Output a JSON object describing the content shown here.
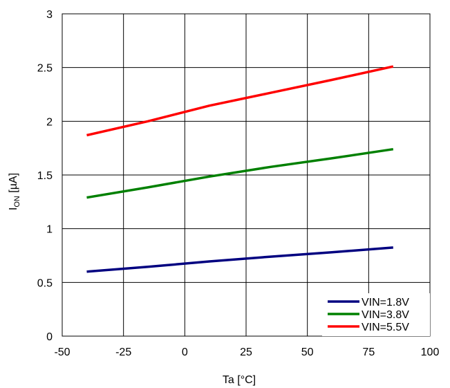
{
  "chart_data": {
    "type": "line",
    "title": "",
    "xlabel": "Ta [°C]",
    "ylabel": {
      "main": "I",
      "sub": "ON",
      "unit": " [µA]"
    },
    "xlim": [
      -50,
      100
    ],
    "ylim": [
      0,
      3
    ],
    "xticks": [
      -50,
      -25,
      0,
      25,
      50,
      75,
      100
    ],
    "yticks": [
      0,
      0.5,
      1,
      1.5,
      2,
      2.5,
      3
    ],
    "xtick_labels": [
      "-50",
      "-25",
      "0",
      "25",
      "50",
      "75",
      "100"
    ],
    "ytick_labels": [
      "0",
      "0.5",
      "1",
      "1.5",
      "2",
      "2.5",
      "3"
    ],
    "grid": true,
    "legend_position": "bottom-right",
    "series": [
      {
        "name": "VIN=1.8V",
        "color": "#000080",
        "x": [
          -40,
          -15,
          10,
          35,
          60,
          85
        ],
        "y": [
          0.6,
          0.645,
          0.695,
          0.74,
          0.78,
          0.825
        ]
      },
      {
        "name": "VIN=3.8V",
        "color": "#008000",
        "x": [
          -40,
          -15,
          10,
          35,
          60,
          85
        ],
        "y": [
          1.29,
          1.385,
          1.485,
          1.575,
          1.655,
          1.74
        ]
      },
      {
        "name": "VIN=5.5V",
        "color": "#ff0000",
        "x": [
          -40,
          -15,
          10,
          35,
          60,
          85
        ],
        "y": [
          1.87,
          2.0,
          2.145,
          2.265,
          2.385,
          2.51
        ]
      }
    ]
  }
}
